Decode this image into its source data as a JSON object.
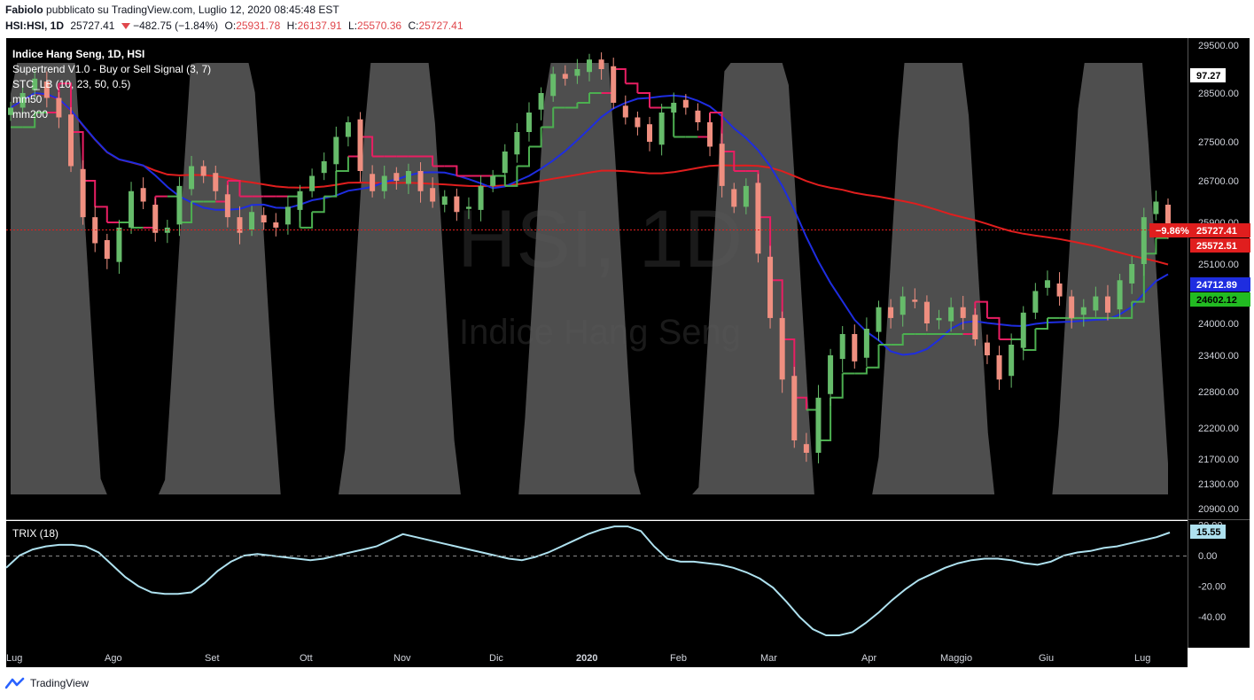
{
  "header": {
    "author": "Fabiolo",
    "published": "pubblicato su TradingView.com, Luglio 12, 2020 08:45:48 EST",
    "symbol": "HSI:HSI, 1D",
    "last": "25727.41",
    "change": "−482.75 (−1.84%)",
    "o_label": "O:",
    "o": "25931.78",
    "h_label": "H:",
    "h": "26137.91",
    "l_label": "L:",
    "l": "25570.36",
    "c_label": "C:",
    "c": "25727.41"
  },
  "legend": {
    "title": "Indice Hang Seng, 1D, HSI",
    "supertrend": "Supertrend V1.0 - Buy or Sell Signal (3, 7)",
    "stc": "STC_LB (10, 23, 50, 0.5)",
    "mm50": "mm50",
    "mm200": "mm200",
    "trix": "TRIX (18)"
  },
  "watermark": {
    "symbol": "HSI, 1D",
    "name": "Indice Hang Seng"
  },
  "brand": "TradingView",
  "colors": {
    "up": "#66bb6a",
    "down": "#ef8f80",
    "supertrend_up": "#4caf50",
    "supertrend_down": "#e91e63",
    "mm50": "#1e2de0",
    "mm200": "#e01e1e",
    "stc": "#5a5a5a",
    "trix": "#aee1ef",
    "background": "#000000"
  },
  "chart_data": [
    {
      "type": "candlestick",
      "title": "Indice Hang Seng, 1D, HSI",
      "ylim": [
        20700,
        29700
      ],
      "y_ticks": [
        "29500.00",
        "28500.00",
        "27500.00",
        "26700.00",
        "25900.00",
        "25100.00",
        "24000.00",
        "23400.00",
        "22800.00",
        "22200.00",
        "21700.00",
        "21300.00",
        "20900.00"
      ],
      "x_ticks": [
        "Lug",
        "Ago",
        "Set",
        "Ott",
        "Nov",
        "Dic",
        "2020",
        "Feb",
        "Mar",
        "Apr",
        "Maggio",
        "Giu",
        "Lug"
      ],
      "price_labels": [
        {
          "label": "−9.86%",
          "value": "25727.41",
          "color": "#e01e1e"
        },
        {
          "value": "25572.51",
          "color": "#e01e1e"
        },
        {
          "value": "24712.89",
          "color": "#1e2de0"
        },
        {
          "value": "24602.12",
          "color": "#22bb22"
        },
        {
          "value": "97.27",
          "color": "#ffffff"
        }
      ],
      "close_series": [
        28200,
        28500,
        28800,
        28400,
        28000,
        27000,
        26000,
        25500,
        25200,
        25800,
        26500,
        26300,
        25700,
        25800,
        26600,
        27000,
        26800,
        26500,
        26000,
        25700,
        26100,
        25900,
        25800,
        26200,
        26500,
        26800,
        27100,
        27600,
        27900,
        26900,
        26500,
        26800,
        26700,
        26900,
        26500,
        26300,
        26400,
        26100,
        26200,
        26600,
        26800,
        27300,
        27700,
        28100,
        28500,
        28900,
        28800,
        29000,
        29200,
        29000,
        28300,
        28000,
        27800,
        27500,
        28100,
        28300,
        28200,
        27900,
        27400,
        26600,
        26200,
        26600,
        25300,
        24100,
        23000,
        22000,
        21800,
        22700,
        23400,
        23800,
        23300,
        23900,
        24300,
        24100,
        24500,
        24400,
        24000,
        24100,
        24300,
        24100,
        23700,
        23400,
        23000,
        23600,
        24200,
        24600,
        24800,
        24500,
        24100,
        24300,
        24500,
        24200,
        24800,
        25100,
        26000,
        26300,
        25727
      ]
    },
    {
      "type": "line",
      "title": "TRIX (18)",
      "ylim": [
        -60,
        22
      ],
      "y_ticks": [
        "20.00",
        "0.00",
        "-20.00",
        "-40.00"
      ],
      "last_value": "15.55",
      "values": [
        -8,
        0,
        4,
        6,
        7,
        7,
        6,
        2,
        -6,
        -14,
        -20,
        -24,
        -25,
        -25,
        -24,
        -18,
        -10,
        -4,
        0,
        1,
        0,
        -1,
        -2,
        -3,
        -2,
        0,
        2,
        4,
        6,
        10,
        14,
        12,
        10,
        8,
        6,
        4,
        2,
        0,
        -2,
        -3,
        -1,
        2,
        6,
        10,
        14,
        17,
        19,
        19,
        16,
        6,
        -2,
        -4,
        -4,
        -5,
        -6,
        -8,
        -11,
        -15,
        -21,
        -30,
        -40,
        -48,
        -52,
        -52,
        -50,
        -44,
        -37,
        -29,
        -22,
        -16,
        -12,
        -8,
        -5,
        -3,
        -2,
        -2,
        -3,
        -5,
        -6,
        -4,
        0,
        2,
        3,
        5,
        6,
        8,
        10,
        12,
        15
      ]
    }
  ]
}
